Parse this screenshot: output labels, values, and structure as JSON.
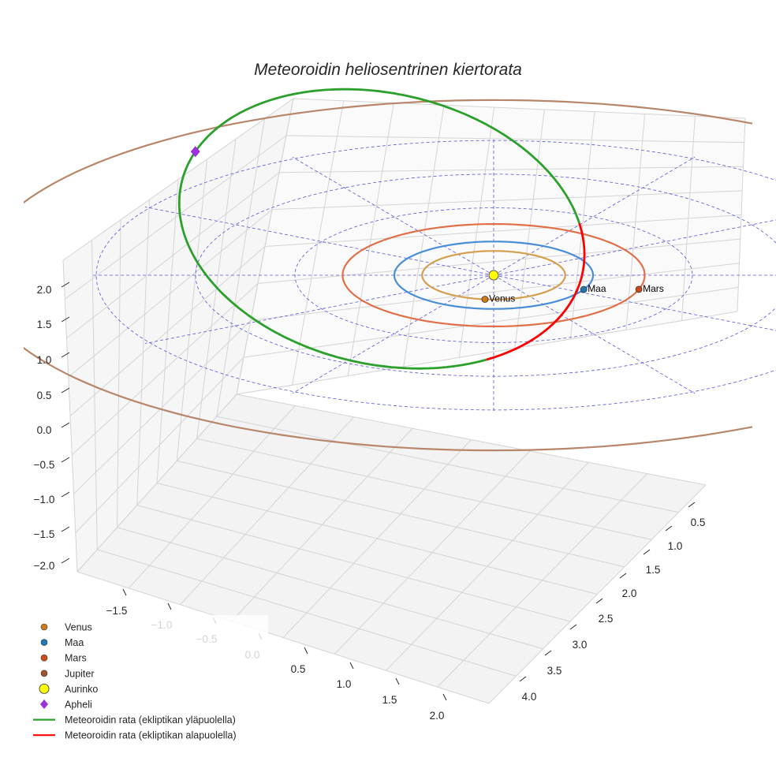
{
  "chart_data": {
    "type": "line",
    "title": "Meteoroidin heliosentrinen kiertorata",
    "xlabel": "",
    "ylabel": "",
    "zlabel": "",
    "x_ticks": [
      "−1.5",
      "−1.0",
      "−0.5",
      "0.0",
      "0.5",
      "1.0",
      "1.5",
      "2.0"
    ],
    "y_ticks": [
      "0.5",
      "1.0",
      "1.5",
      "2.0",
      "2.5",
      "3.0",
      "3.5",
      "4.0"
    ],
    "z_ticks": [
      "2.0",
      "1.5",
      "1.0",
      "0.5",
      "0.0",
      "−0.5",
      "−1.0",
      "−1.5",
      "−2.0"
    ],
    "planets": [
      {
        "name": "Venus",
        "label": "Venus",
        "radius_au": 0.72,
        "color": "#d4a050",
        "marker": "#cc7a1a"
      },
      {
        "name": "Maa",
        "label": "Maa",
        "radius_au": 1.0,
        "color": "#4a8fd6",
        "marker": "#1f77b4"
      },
      {
        "name": "Mars",
        "label": "Mars",
        "radius_au": 1.52,
        "color": "#e0704a",
        "marker": "#cc4a1a"
      },
      {
        "name": "Jupiter",
        "label": "",
        "radius_au": 5.2,
        "color": "#b8866a",
        "marker": "#a0522d"
      }
    ],
    "sun": {
      "name": "Aurinko",
      "color": "#ffff00"
    },
    "aphelion": {
      "name": "Apheli",
      "color": "#9b30d9",
      "distance_au": 3.4
    },
    "meteoroid_orbit": {
      "perihelion_au": 0.85,
      "aphelion_au": 3.4,
      "above_ecliptic": {
        "name": "Meteoroidin rata (ekliptikan yläpuolella)",
        "color": "#2ca02c"
      },
      "below_ecliptic": {
        "name": "Meteoroidin rata (ekliptikan alapuolella)",
        "color": "#ff0000"
      }
    },
    "grid": true,
    "legend_position": "bottom-left"
  },
  "legend": [
    {
      "label": "Venus",
      "color": "#cc7a1a",
      "kind": "dot"
    },
    {
      "label": "Maa",
      "color": "#1f77b4",
      "kind": "dot"
    },
    {
      "label": "Mars",
      "color": "#cc4a1a",
      "kind": "dot"
    },
    {
      "label": "Jupiter",
      "color": "#a0522d",
      "kind": "dot"
    },
    {
      "label": "Aurinko",
      "color": "#ffff00",
      "kind": "sun"
    },
    {
      "label": "Apheli",
      "color": "#9b30d9",
      "kind": "diamond"
    },
    {
      "label": "Meteoroidin rata (ekliptikan yläpuolella)",
      "color": "#2ca02c",
      "kind": "line"
    },
    {
      "label": "Meteoroidin rata (ekliptikan alapuolella)",
      "color": "#ff0000",
      "kind": "line"
    }
  ]
}
